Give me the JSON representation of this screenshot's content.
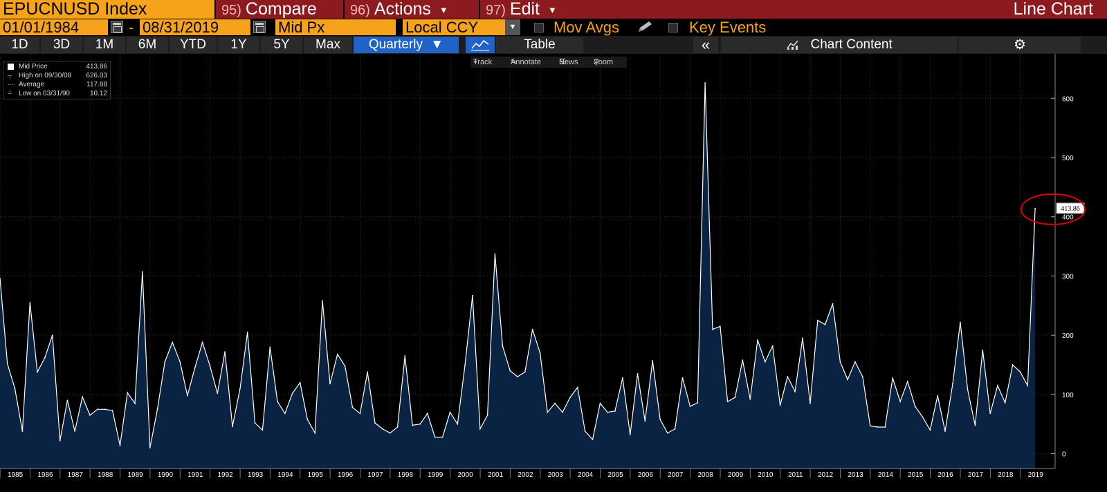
{
  "header": {
    "ticker": "EPUCNUSD Index",
    "compare": {
      "num": "95)",
      "label": "Compare"
    },
    "actions": {
      "num": "96)",
      "label": "Actions"
    },
    "edit": {
      "num": "97)",
      "label": "Edit"
    },
    "chart_title": "Line Chart"
  },
  "options": {
    "start_date": "01/01/1984",
    "end_date": "08/31/2019",
    "field": "Mid Px",
    "currency": "Local CCY",
    "mov_avgs": "Mov Avgs",
    "key_events": "Key Events"
  },
  "toolbar": {
    "periods": [
      "1D",
      "3D",
      "1M",
      "6M",
      "YTD",
      "1Y",
      "5Y",
      "Max"
    ],
    "frequency": "Quarterly",
    "frequency_caret": "▼",
    "table": "Table",
    "collapse": "«",
    "chart_content": "Chart Content",
    "gear": "⚙"
  },
  "tools": {
    "track": "Track",
    "annotate": "Annotate",
    "news": "News",
    "zoom": "Zoom"
  },
  "legend": {
    "series": {
      "label": "Mid Price",
      "value": "413.86"
    },
    "high": {
      "label": "High on 09/30/08",
      "value": "626.03"
    },
    "average": {
      "label": "Average",
      "value": "117.88"
    },
    "low": {
      "label": "Low on 03/31/90",
      "value": "10.12"
    }
  },
  "colors": {
    "line": "#ffffff",
    "fill": "#0b2342",
    "accent_orange": "#f7a21b",
    "menu_red": "#8d1a1f",
    "active_blue": "#1f63c9",
    "annotation_circle": "#e00000"
  },
  "chart_data": {
    "type": "area",
    "title": "",
    "xlabel": "",
    "ylabel": "",
    "ylim": [
      -25,
      675
    ],
    "y_ticks": [
      0,
      100,
      200,
      300,
      400,
      500,
      600
    ],
    "x_tick_labels": [
      "1985",
      "1986",
      "1987",
      "1988",
      "1989",
      "1990",
      "1991",
      "1992",
      "1993",
      "1994",
      "1995",
      "1996",
      "1997",
      "1998",
      "1999",
      "2000",
      "2001",
      "2002",
      "2003",
      "2004",
      "2005",
      "2006",
      "2007",
      "2008",
      "2009",
      "2010",
      "2011",
      "2012",
      "2013",
      "2014",
      "2015",
      "2016",
      "2017",
      "2018",
      "2019"
    ],
    "x_start": "1984-12-31",
    "x_end": "2019-09-30",
    "last_value_label": "413.86",
    "series": [
      {
        "name": "Mid Price",
        "frequency": "quarterly",
        "values": [
          296,
          152,
          110,
          38,
          255,
          138,
          162,
          200,
          22,
          90,
          38,
          96,
          65,
          75,
          75,
          73,
          14,
          103,
          85,
          307,
          10,
          75,
          155,
          188,
          155,
          98,
          145,
          188,
          148,
          102,
          172,
          46,
          110,
          205,
          52,
          40,
          180,
          88,
          68,
          102,
          120,
          58,
          35,
          258,
          118,
          168,
          148,
          78,
          68,
          138,
          52,
          42,
          35,
          45,
          165,
          48,
          50,
          68,
          28,
          28,
          70,
          50,
          150,
          267,
          42,
          65,
          337,
          182,
          140,
          130,
          138,
          210,
          170,
          70,
          85,
          70,
          95,
          112,
          38,
          24,
          85,
          70,
          72,
          128,
          32,
          135,
          55,
          157,
          58,
          35,
          42,
          128,
          80,
          86,
          626,
          210,
          215,
          88,
          95,
          158,
          92,
          192,
          155,
          182,
          82,
          130,
          105,
          195,
          85,
          225,
          218,
          253,
          155,
          125,
          155,
          130,
          47,
          45,
          45,
          128,
          88,
          122,
          80,
          62,
          40,
          98,
          38,
          118,
          222,
          108,
          48,
          175,
          68,
          115,
          86,
          150,
          138,
          115,
          413.86
        ]
      }
    ]
  }
}
